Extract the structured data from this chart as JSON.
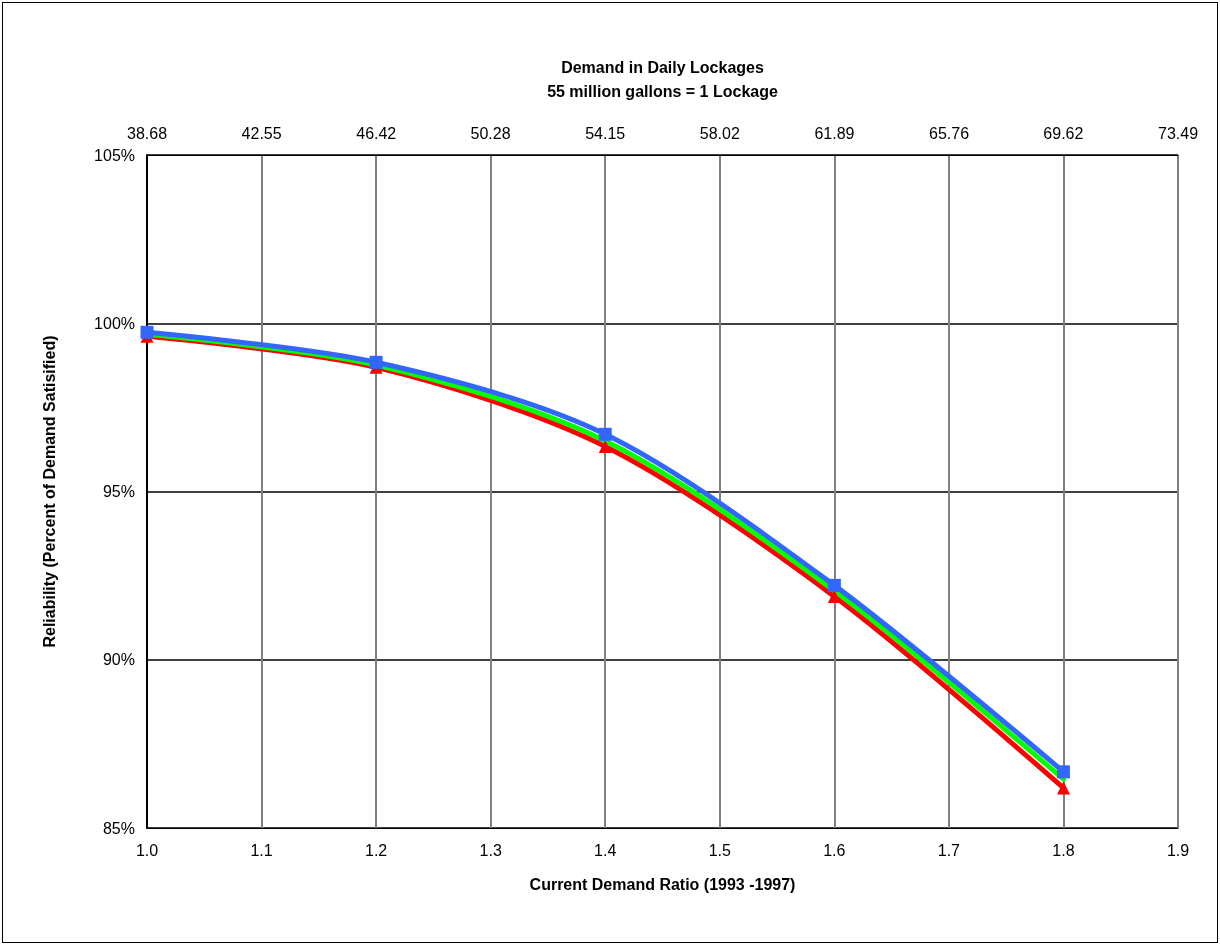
{
  "chart_data": {
    "type": "line",
    "x2label": "Demand in Daily Lockages\n55 million gallons = 1 Lockage",
    "xlabel": "Current Demand Ratio (1993 -1997)",
    "ylabel": "Reliability (Percent of Demand Satisified)",
    "x": [
      1.0,
      1.2,
      1.4,
      1.6,
      1.8
    ],
    "series": [
      {
        "color": "#ff0000",
        "marker": "triangle",
        "values": [
          99.61,
          98.69,
          96.34,
          91.88,
          86.19
        ]
      },
      {
        "color": "#00ff00",
        "marker": "none",
        "values": [
          99.67,
          98.76,
          96.5,
          92.05,
          86.45
        ]
      },
      {
        "color": "#3366ff",
        "marker": "square",
        "values": [
          99.73,
          98.84,
          96.7,
          92.21,
          86.67
        ]
      }
    ],
    "xlim": [
      1.0,
      1.9
    ],
    "xticks": [
      {
        "value": 1,
        "label": "1.0"
      },
      1.1,
      1.2,
      1.3,
      1.4,
      1.5,
      1.6,
      1.7,
      1.8,
      1.9
    ],
    "x2lim": [
      38.68,
      73.49
    ],
    "x2ticks": [
      38.68,
      42.55,
      46.42,
      50.28,
      54.15,
      58.02,
      61.89,
      65.76,
      69.62,
      73.49
    ],
    "ylim": [
      85,
      105
    ],
    "yticks": [
      {
        "value": 85,
        "label": "85%"
      },
      {
        "value": 90,
        "label": "90%"
      },
      {
        "value": 95,
        "label": "95%"
      },
      {
        "value": 100,
        "label": "100%"
      },
      {
        "value": 105,
        "label": "105%"
      }
    ],
    "grid": true,
    "line_style": "solid"
  }
}
